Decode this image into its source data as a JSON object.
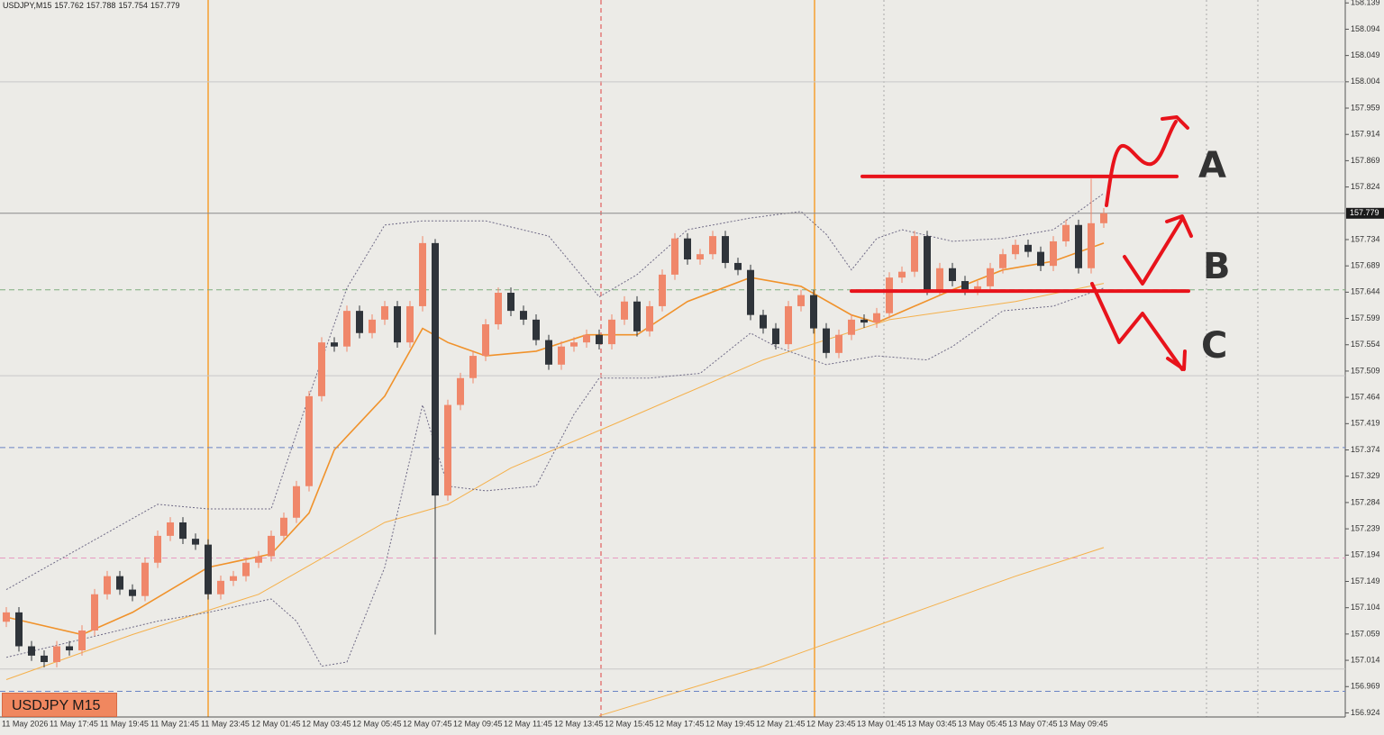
{
  "chart_data": {
    "type": "candlestick",
    "title": "USDJPY,M15",
    "symbol_label": "USDJPY M15",
    "up_color": "#f0876a",
    "down_color": "#2f343a",
    "open": [
      157.08,
      157.096,
      157.038,
      157.022,
      157.011,
      157.038,
      157.031,
      157.065,
      157.127,
      157.158,
      157.135,
      157.124,
      157.181,
      157.227,
      157.25,
      157.222,
      157.212,
      157.127,
      157.15,
      157.158,
      157.181,
      157.192,
      157.227,
      157.258,
      157.312,
      157.466,
      157.558,
      157.551,
      157.612,
      157.574,
      157.597,
      157.62,
      157.558,
      157.62,
      157.728,
      157.296,
      157.451,
      157.497,
      157.535,
      157.589,
      157.643,
      157.612,
      157.597,
      157.562,
      157.52,
      157.551,
      157.558,
      157.571,
      157.555,
      157.597,
      157.628,
      157.577,
      157.62,
      157.674,
      157.736,
      157.7,
      157.709,
      157.74,
      157.694,
      157.682,
      157.605,
      157.582,
      157.555,
      157.62,
      157.639,
      157.582,
      157.54,
      157.571,
      157.597,
      157.592,
      157.608,
      157.669,
      157.679,
      157.74,
      157.648,
      157.685,
      157.663,
      157.648,
      157.654,
      157.685,
      157.709,
      157.725,
      157.713,
      157.689,
      157.731,
      157.759,
      157.685,
      157.762
    ],
    "high": [
      157.105,
      157.105,
      157.047,
      157.031,
      157.047,
      157.047,
      157.074,
      157.136,
      157.167,
      157.167,
      157.144,
      157.19,
      157.236,
      157.259,
      157.259,
      157.231,
      157.221,
      157.159,
      157.167,
      157.19,
      157.201,
      157.236,
      157.267,
      157.321,
      157.475,
      157.567,
      157.567,
      157.621,
      157.621,
      157.606,
      157.629,
      157.629,
      157.629,
      157.74,
      157.735,
      157.46,
      157.506,
      157.544,
      157.598,
      157.652,
      157.652,
      157.621,
      157.606,
      157.571,
      157.56,
      157.567,
      157.58,
      157.58,
      157.606,
      157.637,
      157.637,
      157.629,
      157.683,
      157.745,
      157.745,
      157.718,
      157.749,
      157.749,
      157.703,
      157.691,
      157.614,
      157.591,
      157.629,
      157.648,
      157.648,
      157.591,
      157.58,
      157.606,
      157.606,
      157.617,
      157.678,
      157.688,
      157.749,
      157.749,
      157.694,
      157.694,
      157.672,
      157.663,
      157.694,
      157.718,
      157.734,
      157.734,
      157.722,
      157.74,
      157.768,
      157.768,
      157.838,
      157.788
    ],
    "low": [
      157.071,
      157.029,
      157.013,
      157.002,
      157.002,
      157.022,
      157.022,
      157.056,
      157.118,
      157.126,
      157.115,
      157.115,
      157.172,
      157.218,
      157.213,
      157.203,
      157.118,
      157.118,
      157.141,
      157.149,
      157.172,
      157.183,
      157.218,
      157.249,
      157.303,
      157.457,
      157.542,
      157.542,
      157.565,
      157.565,
      157.588,
      157.549,
      157.549,
      157.611,
      157.058,
      157.287,
      157.442,
      157.488,
      157.526,
      157.58,
      157.603,
      157.588,
      157.553,
      157.511,
      157.511,
      157.542,
      157.549,
      157.546,
      157.546,
      157.588,
      157.568,
      157.568,
      157.611,
      157.665,
      157.691,
      157.691,
      157.7,
      157.685,
      157.673,
      157.596,
      157.573,
      157.546,
      157.546,
      157.611,
      157.573,
      157.531,
      157.531,
      157.562,
      157.583,
      157.583,
      157.599,
      157.66,
      157.67,
      157.639,
      157.639,
      157.654,
      157.639,
      157.639,
      157.645,
      157.676,
      157.7,
      157.704,
      157.68,
      157.68,
      157.722,
      157.676,
      157.676,
      157.754
    ],
    "close": [
      157.096,
      157.038,
      157.022,
      157.011,
      157.038,
      157.031,
      157.065,
      157.127,
      157.158,
      157.135,
      157.124,
      157.181,
      157.227,
      157.25,
      157.222,
      157.212,
      157.127,
      157.15,
      157.158,
      157.181,
      157.192,
      157.227,
      157.258,
      157.312,
      157.466,
      157.558,
      157.551,
      157.612,
      157.574,
      157.597,
      157.62,
      157.558,
      157.62,
      157.728,
      157.296,
      157.451,
      157.497,
      157.535,
      157.589,
      157.643,
      157.612,
      157.597,
      157.562,
      157.52,
      157.551,
      157.558,
      157.571,
      157.555,
      157.597,
      157.628,
      157.577,
      157.62,
      157.674,
      157.736,
      157.7,
      157.709,
      157.74,
      157.694,
      157.682,
      157.605,
      157.582,
      157.555,
      157.62,
      157.639,
      157.582,
      157.54,
      157.571,
      157.597,
      157.592,
      157.608,
      157.669,
      157.679,
      157.74,
      157.648,
      157.685,
      157.663,
      157.648,
      157.654,
      157.685,
      157.709,
      157.725,
      157.713,
      157.689,
      157.731,
      157.759,
      157.685,
      157.762,
      157.779
    ],
    "time_labels": [
      "11 May 2026",
      "11 May 17:45",
      "11 May 19:45",
      "11 May 21:45",
      "11 May 23:45",
      "12 May 01:45",
      "12 May 03:45",
      "12 May 05:45",
      "12 May 07:45",
      "12 May 09:45",
      "12 May 11:45",
      "12 May 13:45",
      "12 May 15:45",
      "12 May 17:45",
      "12 May 19:45",
      "12 May 21:45",
      "12 May 23:45",
      "13 May 01:45",
      "13 May 03:45",
      "13 May 05:45",
      "13 May 07:45",
      "13 May 09:45"
    ],
    "indicators": [
      {
        "color": "#f0922b",
        "style": "solid",
        "x": [
          0,
          6,
          10,
          16,
          21,
          24,
          26,
          30,
          33,
          35,
          38,
          42,
          46,
          50,
          54,
          59,
          63,
          67,
          69,
          72,
          75,
          79,
          83,
          87
        ],
        "values": [
          157.088,
          157.058,
          157.096,
          157.173,
          157.196,
          157.266,
          157.374,
          157.466,
          157.582,
          157.558,
          157.535,
          157.543,
          157.571,
          157.571,
          157.628,
          157.669,
          157.654,
          157.605,
          157.592,
          157.62,
          157.648,
          157.682,
          157.697,
          157.728
        ]
      },
      {
        "color": "#f5b04a",
        "style": "thin",
        "x": [
          0,
          10,
          20,
          30,
          35,
          40,
          50,
          60,
          70,
          80,
          87
        ],
        "values": [
          156.981,
          157.058,
          157.127,
          157.25,
          157.281,
          157.343,
          157.435,
          157.528,
          157.597,
          157.628,
          157.659
        ]
      },
      {
        "color": "#f5b04a",
        "style": "thin",
        "x": [
          47,
          60,
          70,
          80,
          87
        ],
        "values": [
          156.919,
          157.004,
          157.081,
          157.158,
          157.207
        ]
      },
      {
        "color": "#6f6a86",
        "style": "dotted",
        "x": [
          0,
          12,
          16,
          21,
          24,
          27,
          30,
          33,
          38,
          43,
          47,
          50,
          54,
          59,
          63,
          65,
          67,
          69,
          71,
          75,
          79,
          83,
          87
        ],
        "values": [
          157.135,
          157.281,
          157.273,
          157.273,
          157.466,
          157.651,
          157.759,
          157.766,
          157.766,
          157.74,
          157.636,
          157.674,
          157.751,
          157.771,
          157.782,
          157.743,
          157.682,
          157.736,
          157.751,
          157.731,
          157.736,
          157.751,
          157.813
        ]
      },
      {
        "color": "#6f6a86",
        "style": "dotted",
        "x": [
          0,
          12,
          16,
          21,
          23,
          25,
          27,
          30,
          33,
          35,
          38,
          42,
          45,
          47,
          51,
          55,
          59,
          61,
          65,
          69,
          73,
          75,
          79,
          83,
          87
        ],
        "values": [
          157.019,
          157.081,
          157.096,
          157.119,
          157.081,
          157.004,
          157.011,
          157.173,
          157.451,
          157.312,
          157.304,
          157.312,
          157.435,
          157.497,
          157.497,
          157.505,
          157.574,
          157.551,
          157.52,
          157.535,
          157.528,
          157.551,
          157.612,
          157.62,
          157.651
        ]
      }
    ],
    "hlines": [
      {
        "value": 158.004,
        "color": "#c8c8c8",
        "style": "solid"
      },
      {
        "value": 157.648,
        "color": "#7fae7f",
        "style": "dashed"
      },
      {
        "value": 157.501,
        "color": "#c8c8c8",
        "style": "solid"
      },
      {
        "value": 157.378,
        "color": "#6a84c4",
        "style": "dashed"
      },
      {
        "value": 157.189,
        "color": "#e79ac0",
        "style": "dashed"
      },
      {
        "value": 156.999,
        "color": "#c8c8c8",
        "style": "solid"
      },
      {
        "value": 156.961,
        "color": "#6a84c4",
        "style": "dashed"
      }
    ],
    "levels": [
      157.842,
      157.646
    ],
    "annotations": [
      "A",
      "B",
      "C"
    ],
    "annotation_color": "#e8131b",
    "ylim": [
      156.917,
      158.144
    ],
    "yticks": [
      158.139,
      158.094,
      158.049,
      158.004,
      157.959,
      157.914,
      157.869,
      157.824,
      157.734,
      157.689,
      157.644,
      157.599,
      157.554,
      157.509,
      157.464,
      157.419,
      157.374,
      157.329,
      157.284,
      157.239,
      157.194,
      157.149,
      157.104,
      157.059,
      157.014,
      156.969,
      156.924
    ]
  }
}
